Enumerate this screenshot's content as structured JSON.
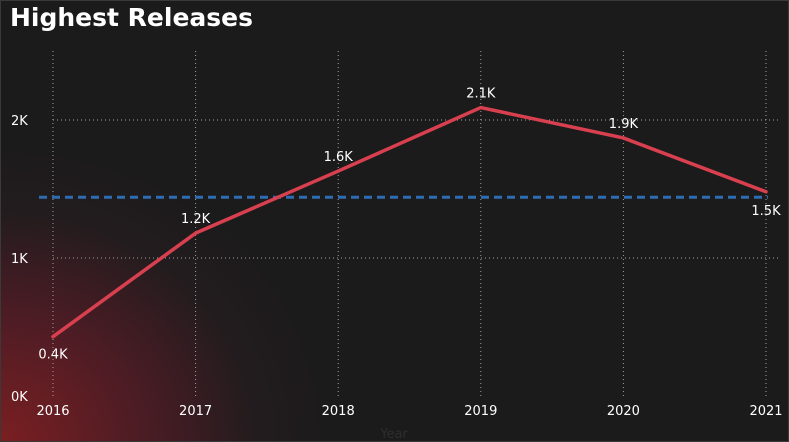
{
  "chart_data": {
    "type": "line",
    "title": "Highest Releases",
    "xlabel": "Year",
    "ylabel": "",
    "x": [
      "2016",
      "2017",
      "2018",
      "2019",
      "2020",
      "2021"
    ],
    "series": [
      {
        "values": [
          430,
          1180,
          1630,
          2090,
          1870,
          1480
        ]
      }
    ],
    "data_labels": [
      "0.4K",
      "1.2K",
      "1.6K",
      "2.1K",
      "1.9K",
      "1.5K"
    ],
    "average_line": 1440,
    "yticks": [
      0,
      1000,
      2000
    ],
    "ytick_labels": [
      "0K",
      "1K",
      "2K"
    ],
    "ylim": [
      0,
      2500
    ],
    "grid": true,
    "colors": {
      "line": "#d9404f",
      "average_line": "#2f6db3",
      "grid": "#a0a0a0",
      "text": "#ffffff"
    }
  }
}
